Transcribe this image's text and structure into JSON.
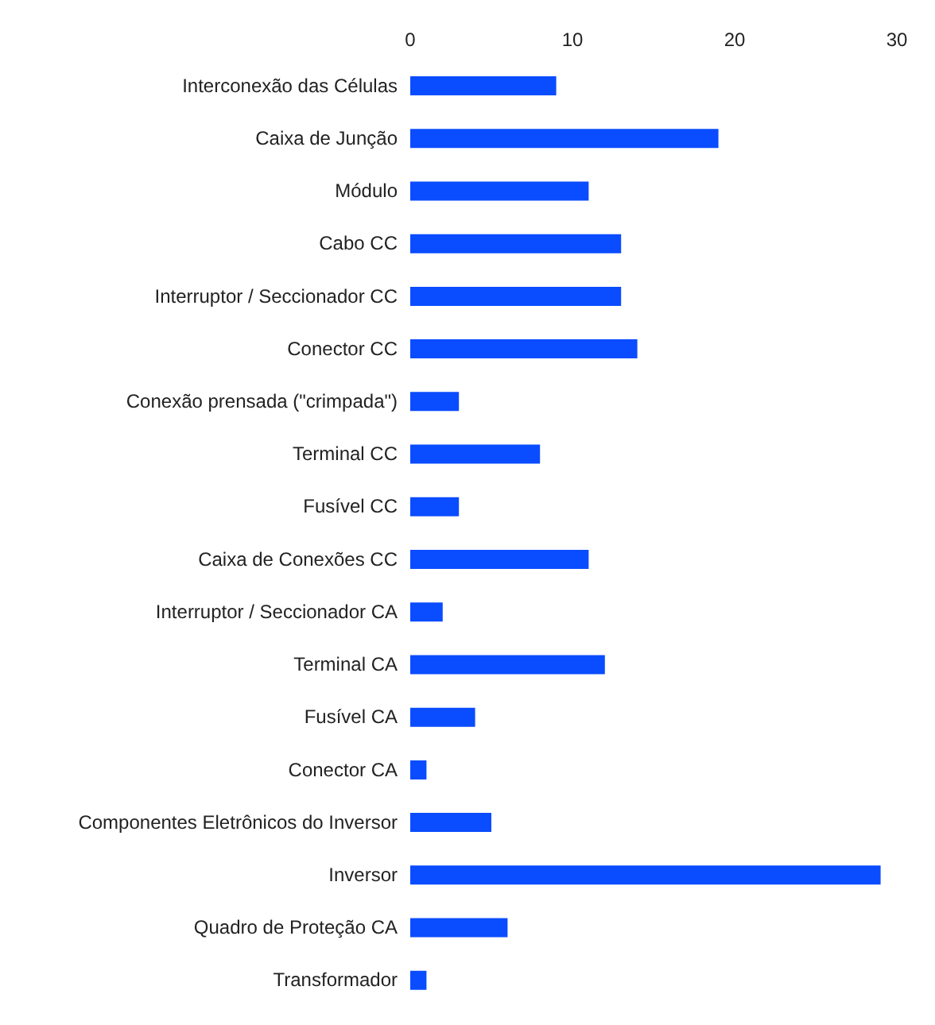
{
  "chart_data": {
    "type": "bar",
    "orientation": "horizontal",
    "categories": [
      "Interconexão das Células",
      "Caixa de Junção",
      "Módulo",
      "Cabo CC",
      "Interruptor / Seccionador CC",
      "Conector CC",
      "Conexão prensada (\"crimpada\")",
      "Terminal CC",
      "Fusível CC",
      "Caixa de Conexões CC",
      "Interruptor / Seccionador CA",
      "Terminal CA",
      "Fusível CA",
      "Conector CA",
      "Componentes Eletrônicos do Inversor",
      "Inversor",
      "Quadro de Proteção CA",
      "Transformador"
    ],
    "values": [
      9,
      19,
      11,
      13,
      13,
      14,
      3,
      8,
      3,
      11,
      2,
      12,
      4,
      1,
      5,
      29,
      6,
      1
    ],
    "color": "#0a4cff",
    "xlim": [
      0,
      30
    ],
    "xticks": [
      0,
      10,
      20,
      30
    ],
    "grid": false,
    "legend": false
  }
}
